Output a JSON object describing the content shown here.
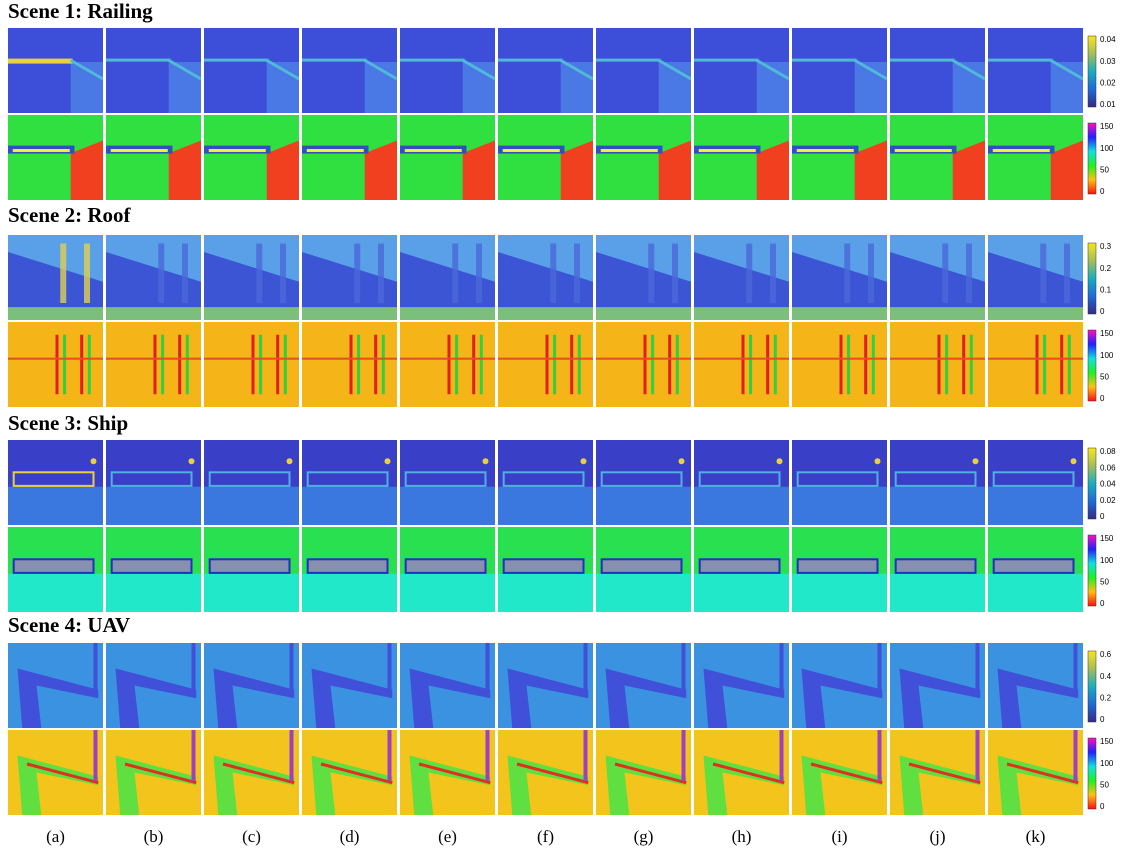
{
  "scenes": [
    {
      "title": "Scene 1: Railing",
      "maps": [
        {
          "ticks": [
            "0.04",
            "0.03",
            "0.02",
            "0.01"
          ]
        },
        {
          "ticks": [
            "150",
            "100",
            "50",
            "0"
          ]
        }
      ]
    },
    {
      "title": "Scene 2: Roof",
      "maps": [
        {
          "ticks": [
            "0.3",
            "0.2",
            "0.1",
            "0"
          ]
        },
        {
          "ticks": [
            "150",
            "100",
            "50",
            "0"
          ]
        }
      ]
    },
    {
      "title": "Scene 3: Ship",
      "maps": [
        {
          "ticks": [
            "0.08",
            "0.06",
            "0.04",
            "0.02",
            "0"
          ]
        },
        {
          "ticks": [
            "150",
            "100",
            "50",
            "0"
          ]
        }
      ]
    },
    {
      "title": "Scene 4: UAV",
      "maps": [
        {
          "ticks": [
            "0.6",
            "0.4",
            "0.2",
            "0"
          ]
        },
        {
          "ticks": [
            "150",
            "100",
            "50",
            "0"
          ]
        }
      ]
    }
  ],
  "columns": [
    "(a)",
    "(b)",
    "(c)",
    "(d)",
    "(e)",
    "(f)",
    "(g)",
    "(h)",
    "(i)",
    "(j)",
    "(k)"
  ]
}
